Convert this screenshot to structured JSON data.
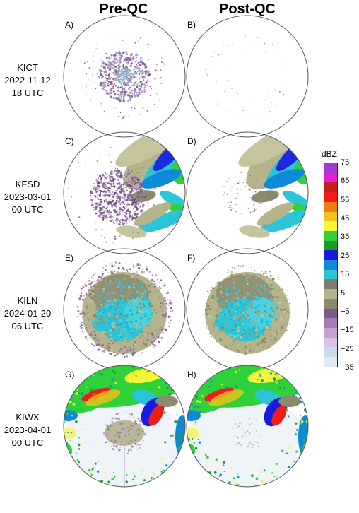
{
  "columns": [
    "Pre-QC",
    "Post-QC"
  ],
  "rows": [
    {
      "station": "KICT",
      "date": "2022-11-12",
      "time": "18 UTC",
      "pre": "A)",
      "post": "B)"
    },
    {
      "station": "KFSD",
      "date": "2023-03-01",
      "time": "00 UTC",
      "pre": "C)",
      "post": "D)"
    },
    {
      "station": "KILN",
      "date": "2024-01-20",
      "time": "06 UTC",
      "pre": "E)",
      "post": "F)"
    },
    {
      "station": "KIWX",
      "date": "2023-04-01",
      "time": "00 UTC",
      "pre": "G)",
      "post": "H)"
    }
  ],
  "colorbar": {
    "title": "dBZ",
    "labels": [
      "75",
      "65",
      "55",
      "45",
      "35",
      "25",
      "15",
      "5",
      "−5",
      "−15",
      "−25",
      "−35"
    ],
    "colors": [
      "#dfe9f3",
      "#c9dcea",
      "#d8c3e0",
      "#c6a0cf",
      "#a67cb5",
      "#7e5a8b",
      "#8c8a6e",
      "#b4b38a",
      "#7c7c72",
      "#2bc4d8",
      "#0e8ad6",
      "#1a1adf",
      "#1b9a26",
      "#2fd13a",
      "#f5f536",
      "#f2c21a",
      "#ee7d14",
      "#f01c1c",
      "#c61e1e",
      "#e11ed8",
      "#a43ad4"
    ]
  }
}
